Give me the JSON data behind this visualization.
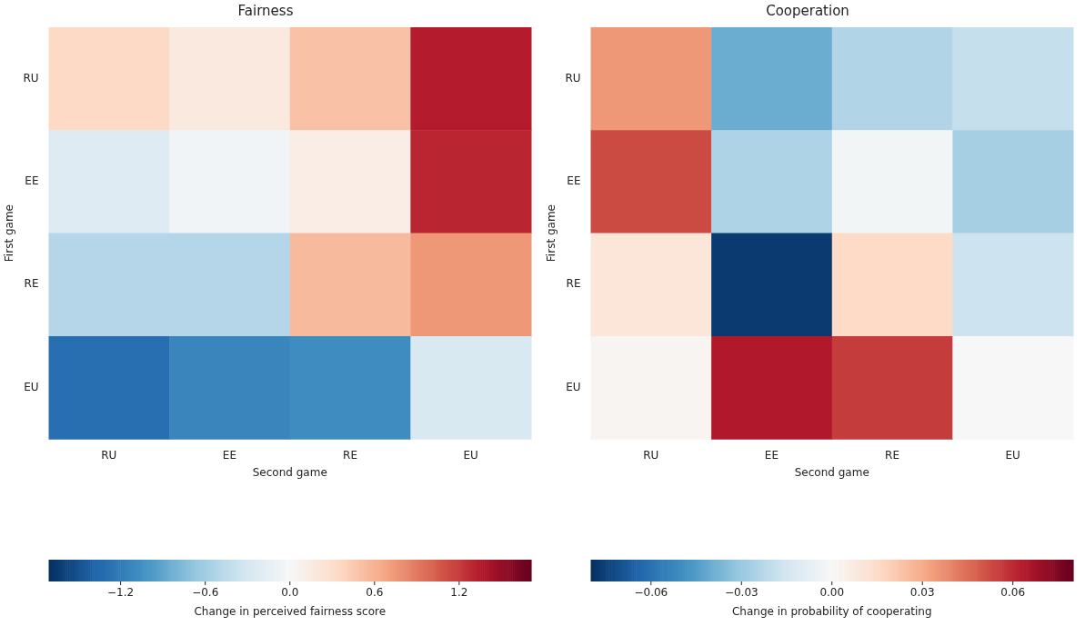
{
  "chart_data": [
    {
      "type": "heatmap",
      "title": "Fairness",
      "xlabel": "Second game",
      "ylabel": "First game",
      "clabel": "Change in perceived fairness score",
      "categories": [
        "RU",
        "EE",
        "RE",
        "EU"
      ],
      "y_categories": [
        "RU",
        "EE",
        "RE",
        "EU"
      ],
      "cells": [
        [
          0.35,
          0.17,
          0.5,
          1.35
        ],
        [
          -0.22,
          -0.05,
          0.12,
          1.3
        ],
        [
          -0.5,
          -0.5,
          0.55,
          0.75
        ],
        [
          -1.3,
          -1.13,
          -1.07,
          -0.27
        ]
      ],
      "clim": [
        -1.71,
        1.71
      ],
      "cticks": [
        -1.2,
        -0.6,
        {
          "value": 0,
          "label": "0.0"
        },
        0.6,
        1.2
      ]
    },
    {
      "type": "heatmap",
      "title": "Cooperation",
      "xlabel": "Second game",
      "ylabel": "First game",
      "clabel": "Change in probability of cooperating",
      "categories": [
        "RU",
        "EE",
        "RE",
        "EU"
      ],
      "y_categories": [
        "RU",
        "EE",
        "RE",
        "EU"
      ],
      "cells": [
        [
          0.035,
          -0.04,
          -0.024,
          -0.019
        ],
        [
          0.053,
          -0.025,
          -0.002,
          -0.027
        ],
        [
          0.01,
          -0.077,
          0.016,
          -0.017
        ],
        [
          0.002,
          0.064,
          0.056,
          0.0
        ]
      ],
      "clim": [
        -0.08,
        0.08
      ],
      "cticks": [
        -0.06,
        -0.03,
        {
          "value": 0,
          "label": "0.00"
        },
        0.03,
        0.06
      ]
    }
  ]
}
